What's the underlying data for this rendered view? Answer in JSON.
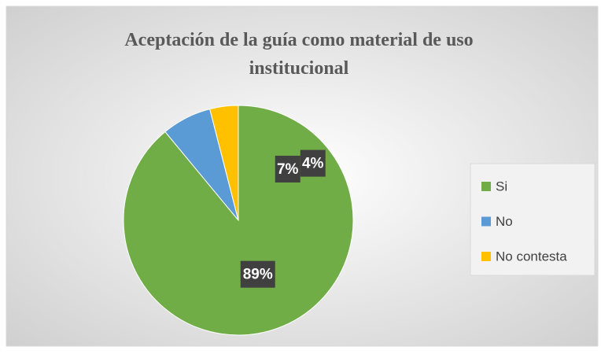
{
  "chart_data": {
    "type": "pie",
    "title": [
      "Aceptación de la guía como material de uso",
      "institucional"
    ],
    "categories": [
      "Si",
      "No",
      "No contesta"
    ],
    "values": [
      89,
      7,
      4
    ],
    "value_labels": [
      "89%",
      "7%",
      "4%"
    ],
    "colors": [
      "#70ad47",
      "#5b9bd5",
      "#ffc000"
    ],
    "legend": "right"
  }
}
